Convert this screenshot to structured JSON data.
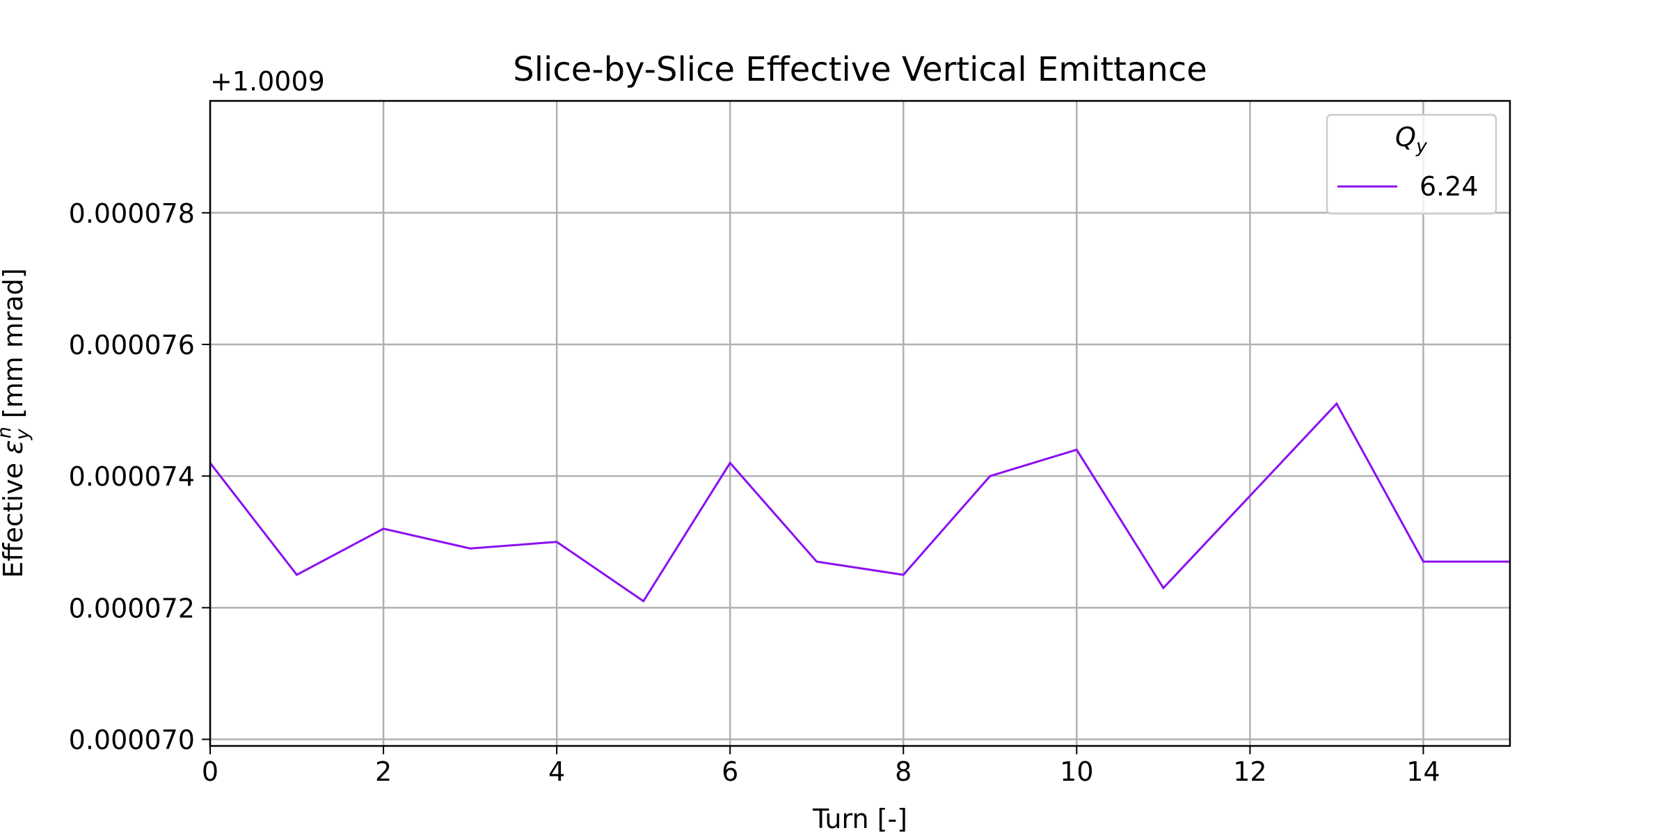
{
  "chart_data": {
    "type": "line",
    "title": "Slice-by-Slice Effective Vertical Emittance",
    "xlabel": "Turn [-]",
    "ylabel_prefix": "Effective ",
    "ylabel_symbol": "ε",
    "ylabel_sub": "y",
    "ylabel_sup": "n",
    "ylabel_suffix": " [mm mrad]",
    "offset_text": "+1.0009",
    "xlim": [
      0,
      15
    ],
    "ylim": [
      6.99e-05,
      7.97e-05
    ],
    "x_ticks": [
      0,
      2,
      4,
      6,
      8,
      10,
      12,
      14
    ],
    "x_tick_labels": [
      "0",
      "2",
      "4",
      "6",
      "8",
      "10",
      "12",
      "14"
    ],
    "y_ticks": [
      7e-05,
      7.2e-05,
      7.4e-05,
      7.6e-05,
      7.8e-05
    ],
    "y_tick_labels": [
      "0.000070",
      "0.000072",
      "0.000074",
      "0.000076",
      "0.000078"
    ],
    "grid": true,
    "legend": {
      "title_symbol": "Q",
      "title_sub": "y",
      "placement": "top-right"
    },
    "series": [
      {
        "name": "6.24",
        "color": "#8b0ff0",
        "x": [
          0,
          1,
          2,
          3,
          4,
          5,
          6,
          7,
          8,
          9,
          10,
          11,
          12,
          13,
          14,
          15
        ],
        "y": [
          7.42e-05,
          7.25e-05,
          7.32e-05,
          7.29e-05,
          7.3e-05,
          7.21e-05,
          7.42e-05,
          7.27e-05,
          7.25e-05,
          7.4e-05,
          7.44e-05,
          7.23e-05,
          7.37e-05,
          7.51e-05,
          7.27e-05,
          7.27e-05
        ]
      }
    ]
  }
}
